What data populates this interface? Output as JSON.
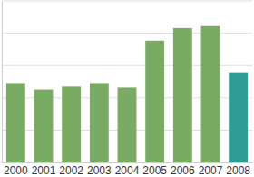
{
  "chart_data": {
    "type": "bar",
    "categories": [
      "2000",
      "2001",
      "2002",
      "2003",
      "2004",
      "2005",
      "2006",
      "2007",
      "2008"
    ],
    "values": [
      2.46,
      2.26,
      2.35,
      2.46,
      2.32,
      3.77,
      4.16,
      4.22,
      2.79
    ],
    "colors": [
      "#7aab62",
      "#7aab62",
      "#7aab62",
      "#7aab62",
      "#7aab62",
      "#7aab62",
      "#7aab62",
      "#7aab62",
      "#2e9b95"
    ],
    "ylim": [
      0,
      5
    ],
    "yticks": [
      0,
      1,
      2,
      3,
      4,
      5
    ],
    "grid": true,
    "tick_labels": "x"
  }
}
